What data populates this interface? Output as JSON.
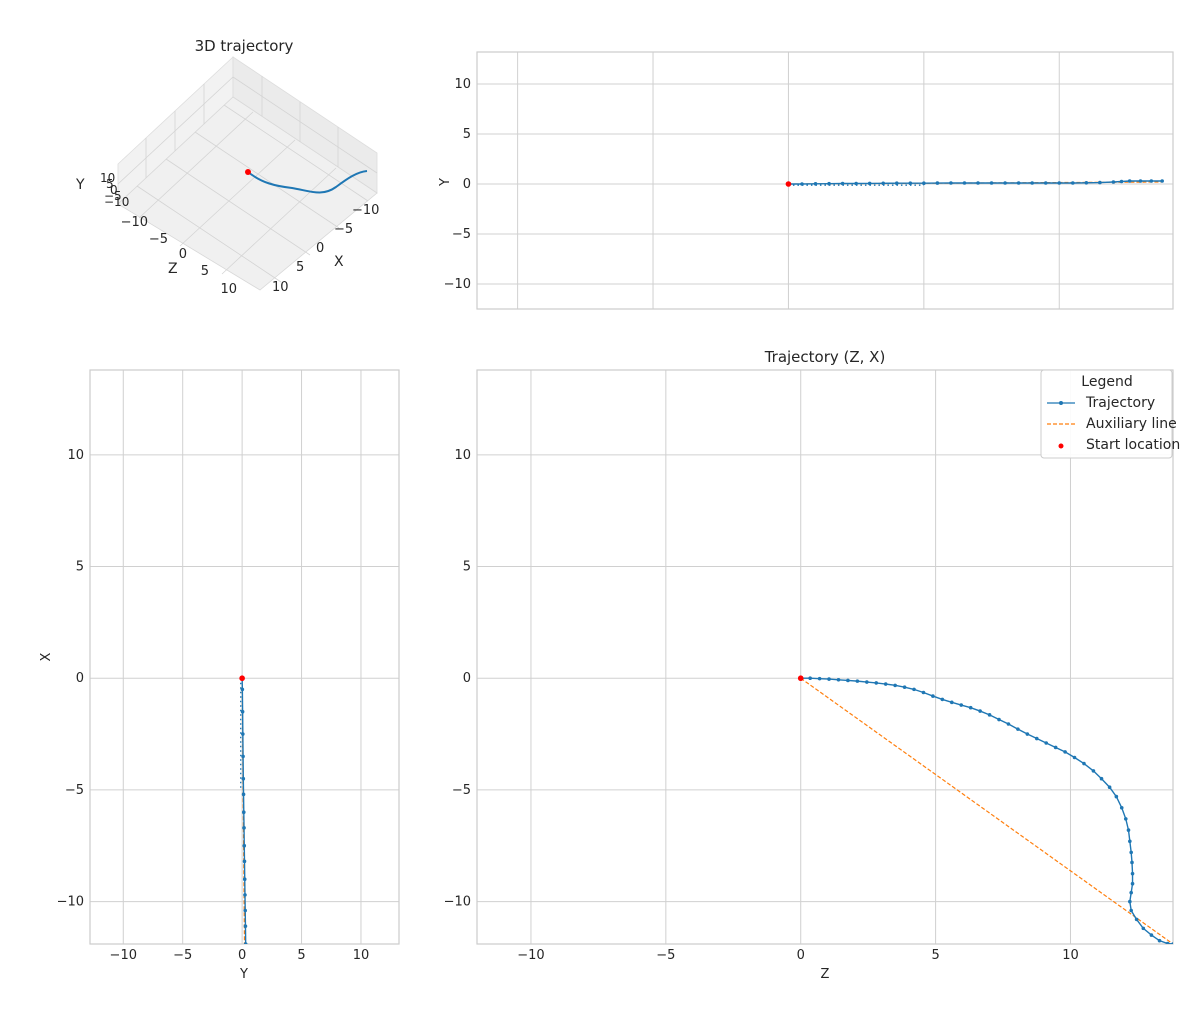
{
  "figure_colors": {
    "trajectory": "#1f77b4",
    "auxiliary": "#ff7f0e",
    "start": "#ff0000",
    "grid": "#d0d0d0",
    "frame": "#cccccc",
    "pane": "#f2f2f2"
  },
  "chart_data": [
    {
      "id": "panel-3d",
      "type": "line",
      "projection": "3d",
      "title": "3D trajectory",
      "axis_labels": {
        "x": "X",
        "y": "Y",
        "z": "Z"
      },
      "x_ticks": [
        "10",
        "5",
        "0",
        "−5",
        "−10"
      ],
      "z_ticks": [
        "−10",
        "−5",
        "0",
        "5",
        "10"
      ],
      "y_ticks": [
        "10",
        "5",
        "0",
        "−5",
        "−10"
      ],
      "grid": true
    },
    {
      "id": "panel-zy",
      "type": "line",
      "title": "",
      "xlabel": "",
      "ylabel": "Y",
      "xlim": [
        -11.5,
        14.2
      ],
      "ylim": [
        -12.5,
        13.2
      ],
      "y_ticks": [
        -10,
        -5,
        0,
        5,
        10
      ],
      "y_tick_labels": [
        "−10",
        "−5",
        "0",
        "5",
        "10"
      ],
      "x_gridlines": [
        -10,
        -5,
        0,
        5,
        10
      ],
      "grid": true,
      "series": [
        {
          "name": "Trajectory",
          "style": "line-dots",
          "x": [
            0,
            0.5,
            1,
            1.5,
            2,
            2.5,
            3,
            3.5,
            4,
            4.5,
            5,
            5.5,
            6,
            6.5,
            7,
            7.5,
            8,
            8.5,
            9,
            9.5,
            10,
            10.5,
            11,
            11.5,
            12,
            12.3,
            12.6,
            13,
            13.4,
            13.8
          ],
          "y": [
            0,
            0,
            0.02,
            0.03,
            0.05,
            0.05,
            0.06,
            0.07,
            0.08,
            0.08,
            0.08,
            0.09,
            0.1,
            0.1,
            0.1,
            0.1,
            0.1,
            0.1,
            0.1,
            0.1,
            0.1,
            0.1,
            0.12,
            0.14,
            0.2,
            0.25,
            0.3,
            0.3,
            0.3,
            0.3
          ]
        },
        {
          "name": "Auxiliary line",
          "style": "dashed",
          "x": [
            0,
            13.8
          ],
          "y": [
            0,
            0.2
          ]
        },
        {
          "name": "",
          "style": "dotted",
          "x": [
            0,
            5
          ],
          "y": [
            -0.12,
            -0.12
          ]
        },
        {
          "name": "Start location",
          "style": "point",
          "x": [
            0
          ],
          "y": [
            0
          ]
        }
      ]
    },
    {
      "id": "panel-yx",
      "type": "line",
      "title": "",
      "xlabel": "Y",
      "ylabel": "X",
      "xlim": [
        -12.8,
        13.2
      ],
      "ylim": [
        -11.9,
        13.8
      ],
      "x_ticks": [
        -10,
        -5,
        0,
        5,
        10
      ],
      "x_tick_labels": [
        "−10",
        "−5",
        "0",
        "5",
        "10"
      ],
      "y_ticks": [
        -10,
        -5,
        0,
        5,
        10
      ],
      "y_tick_labels": [
        "−10",
        "−5",
        "0",
        "5",
        "10"
      ],
      "grid": true,
      "series": [
        {
          "name": "Trajectory",
          "style": "line-dots",
          "x": [
            0,
            0.02,
            0.04,
            0.06,
            0.08,
            0.1,
            0.12,
            0.14,
            0.16,
            0.18,
            0.2,
            0.22,
            0.24,
            0.26,
            0.28,
            0.3
          ],
          "y": [
            0,
            -0.5,
            -1.5,
            -2.5,
            -3.5,
            -4.5,
            -5.2,
            -6,
            -6.7,
            -7.5,
            -8.2,
            -9,
            -9.7,
            -10.4,
            -11.1,
            -11.9
          ]
        },
        {
          "name": "Auxiliary line",
          "style": "dashed",
          "x": [
            0,
            0.2
          ],
          "y": [
            0,
            -11.9
          ]
        },
        {
          "name": "",
          "style": "dotted",
          "x": [
            -0.12,
            -0.12
          ],
          "y": [
            0,
            -5
          ]
        },
        {
          "name": "Start location",
          "style": "point",
          "x": [
            0
          ],
          "y": [
            0
          ]
        }
      ]
    },
    {
      "id": "panel-zx",
      "type": "line",
      "title": "Trajectory (Z, X)",
      "xlabel": "Z",
      "ylabel": "",
      "xlim": [
        -12,
        13.8
      ],
      "ylim": [
        -11.9,
        13.8
      ],
      "x_ticks": [
        -10,
        -5,
        0,
        5,
        10
      ],
      "x_tick_labels": [
        "−10",
        "−5",
        "0",
        "5",
        "10"
      ],
      "y_ticks": [
        -10,
        -5,
        0,
        5,
        10
      ],
      "y_tick_labels": [
        "−10",
        "−5",
        "0",
        "5",
        "10"
      ],
      "grid": true,
      "legend": {
        "title": "Legend",
        "position": "top-right",
        "entries": [
          "Trajectory",
          "Auxiliary line",
          "Start location"
        ]
      },
      "series": [
        {
          "name": "Trajectory",
          "style": "line-dots",
          "x": [
            0,
            0.35,
            0.7,
            1.05,
            1.4,
            1.75,
            2.1,
            2.45,
            2.8,
            3.15,
            3.5,
            3.85,
            4.2,
            4.55,
            4.9,
            5.25,
            5.6,
            5.95,
            6.3,
            6.65,
            7.0,
            7.35,
            7.7,
            8.05,
            8.4,
            8.75,
            9.1,
            9.45,
            9.8,
            10.15,
            10.5,
            10.85,
            11.15,
            11.45,
            11.7,
            11.9,
            12.05,
            12.15,
            12.2,
            12.25,
            12.28,
            12.3,
            12.3,
            12.25,
            12.2,
            12.25,
            12.45,
            12.7,
            13.0,
            13.3,
            13.6,
            13.8
          ],
          "y": [
            0,
            0,
            -0.02,
            -0.04,
            -0.07,
            -0.1,
            -0.13,
            -0.17,
            -0.21,
            -0.26,
            -0.32,
            -0.4,
            -0.5,
            -0.64,
            -0.8,
            -0.95,
            -1.08,
            -1.2,
            -1.32,
            -1.47,
            -1.64,
            -1.85,
            -2.05,
            -2.28,
            -2.5,
            -2.7,
            -2.9,
            -3.1,
            -3.3,
            -3.55,
            -3.82,
            -4.15,
            -4.5,
            -4.88,
            -5.3,
            -5.8,
            -6.3,
            -6.8,
            -7.3,
            -7.8,
            -8.25,
            -8.75,
            -9.2,
            -9.6,
            -10.0,
            -10.4,
            -10.8,
            -11.2,
            -11.5,
            -11.75,
            -11.88,
            -11.9
          ]
        },
        {
          "name": "Auxiliary line",
          "style": "dashed",
          "x": [
            0,
            13.8
          ],
          "y": [
            0,
            -11.9
          ]
        },
        {
          "name": "Start location",
          "style": "point",
          "x": [
            0
          ],
          "y": [
            0
          ]
        }
      ]
    }
  ]
}
